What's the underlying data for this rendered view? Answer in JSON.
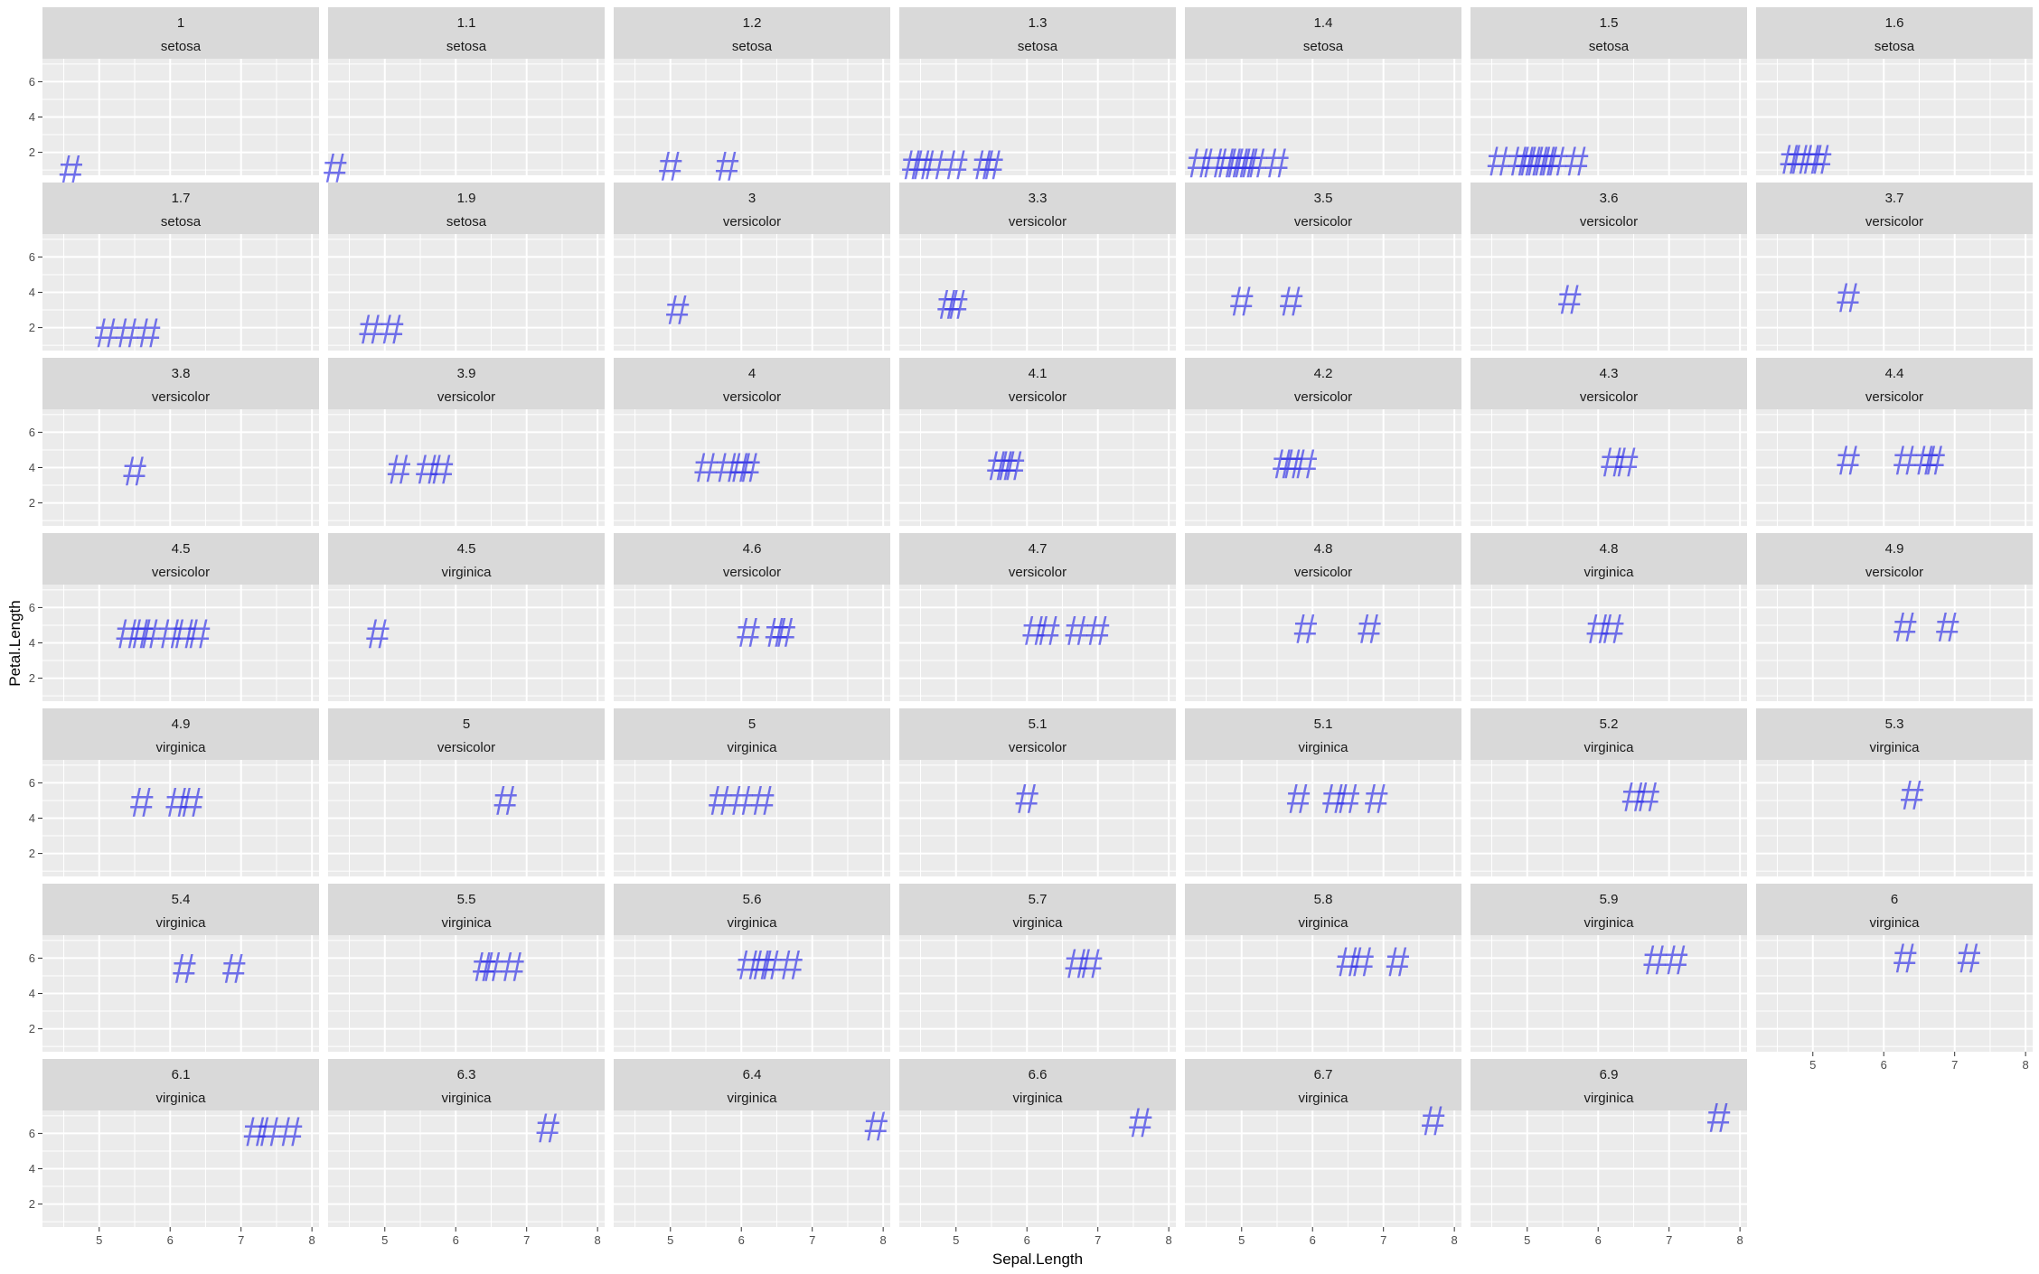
{
  "chart_data": {
    "type": "scatter",
    "title": "",
    "xlabel": "Sepal.Length",
    "ylabel": "Petal.Length",
    "facet_by": [
      "Petal.Length",
      "Species"
    ],
    "xlim": [
      4.2,
      8.1
    ],
    "ylim": [
      0.7,
      7.3
    ],
    "x_ticks": [
      5,
      6,
      7,
      8
    ],
    "y_ticks": [
      2,
      4,
      6
    ],
    "marker": "#",
    "marker_color": "#2B2BE6",
    "panel_background": "#EBEBEB",
    "strip_background": "#D9D9D9",
    "grid": true,
    "x_axis_panels": [
      41,
      42,
      43,
      44,
      45,
      46,
      47
    ],
    "panels": [
      {
        "strip": [
          "1",
          "setosa"
        ],
        "x": [
          4.6
        ],
        "y": [
          1.0
        ]
      },
      {
        "strip": [
          "1.1",
          "setosa"
        ],
        "x": [
          4.3
        ],
        "y": [
          1.1
        ]
      },
      {
        "strip": [
          "1.2",
          "setosa"
        ],
        "x": [
          5.0,
          5.8
        ],
        "y": [
          1.2,
          1.2
        ]
      },
      {
        "strip": [
          "1.3",
          "setosa"
        ],
        "x": [
          4.4,
          4.5,
          4.7,
          5.0,
          5.4,
          5.5
        ],
        "y": [
          1.3,
          1.3,
          1.3,
          1.3,
          1.3,
          1.3
        ]
      },
      {
        "strip": [
          "1.4",
          "setosa"
        ],
        "x": [
          4.4,
          4.6,
          4.8,
          4.9,
          5.0,
          5.1,
          5.2,
          5.5
        ],
        "y": [
          1.4,
          1.4,
          1.4,
          1.4,
          1.4,
          1.4,
          1.4,
          1.4
        ]
      },
      {
        "strip": [
          "1.5",
          "setosa"
        ],
        "x": [
          4.6,
          4.9,
          5.0,
          5.1,
          5.2,
          5.3,
          5.4,
          5.7
        ],
        "y": [
          1.5,
          1.5,
          1.5,
          1.5,
          1.5,
          1.5,
          1.5,
          1.5
        ]
      },
      {
        "strip": [
          "1.6",
          "setosa"
        ],
        "x": [
          4.7,
          4.8,
          5.0,
          5.1
        ],
        "y": [
          1.6,
          1.6,
          1.6,
          1.6
        ]
      },
      {
        "strip": [
          "1.7",
          "setosa"
        ],
        "x": [
          5.1,
          5.4,
          5.7
        ],
        "y": [
          1.7,
          1.7,
          1.7
        ]
      },
      {
        "strip": [
          "1.9",
          "setosa"
        ],
        "x": [
          4.8,
          5.1
        ],
        "y": [
          1.9,
          1.9
        ]
      },
      {
        "strip": [
          "3",
          "versicolor"
        ],
        "x": [
          5.1
        ],
        "y": [
          3.0
        ]
      },
      {
        "strip": [
          "3.3",
          "versicolor"
        ],
        "x": [
          4.9,
          5.0
        ],
        "y": [
          3.3,
          3.3
        ]
      },
      {
        "strip": [
          "3.5",
          "versicolor"
        ],
        "x": [
          5.0,
          5.7
        ],
        "y": [
          3.5,
          3.5
        ]
      },
      {
        "strip": [
          "3.6",
          "versicolor"
        ],
        "x": [
          5.6
        ],
        "y": [
          3.6
        ]
      },
      {
        "strip": [
          "3.7",
          "versicolor"
        ],
        "x": [
          5.5
        ],
        "y": [
          3.7
        ]
      },
      {
        "strip": [
          "3.8",
          "versicolor"
        ],
        "x": [
          5.5
        ],
        "y": [
          3.8
        ]
      },
      {
        "strip": [
          "3.9",
          "versicolor"
        ],
        "x": [
          5.2,
          5.6,
          5.8
        ],
        "y": [
          3.9,
          3.9,
          3.9
        ]
      },
      {
        "strip": [
          "4",
          "versicolor"
        ],
        "x": [
          5.5,
          5.8,
          6.0,
          6.1
        ],
        "y": [
          4.0,
          4.0,
          4.0,
          4.0
        ]
      },
      {
        "strip": [
          "4.1",
          "versicolor"
        ],
        "x": [
          5.6,
          5.7,
          5.8
        ],
        "y": [
          4.1,
          4.1,
          4.1
        ]
      },
      {
        "strip": [
          "4.2",
          "versicolor"
        ],
        "x": [
          5.6,
          5.7,
          5.9
        ],
        "y": [
          4.2,
          4.2,
          4.2
        ]
      },
      {
        "strip": [
          "4.3",
          "versicolor"
        ],
        "x": [
          6.2,
          6.4
        ],
        "y": [
          4.3,
          4.3
        ]
      },
      {
        "strip": [
          "4.4",
          "versicolor"
        ],
        "x": [
          5.5,
          6.3,
          6.6,
          6.7
        ],
        "y": [
          4.4,
          4.4,
          4.4,
          4.4
        ]
      },
      {
        "strip": [
          "4.5",
          "versicolor"
        ],
        "x": [
          5.4,
          5.6,
          5.7,
          6.0,
          6.2,
          6.4
        ],
        "y": [
          4.5,
          4.5,
          4.5,
          4.5,
          4.5,
          4.5
        ]
      },
      {
        "strip": [
          "4.5",
          "virginica"
        ],
        "x": [
          4.9
        ],
        "y": [
          4.5
        ]
      },
      {
        "strip": [
          "4.6",
          "versicolor"
        ],
        "x": [
          6.1,
          6.5,
          6.6
        ],
        "y": [
          4.6,
          4.6,
          4.6
        ]
      },
      {
        "strip": [
          "4.7",
          "versicolor"
        ],
        "x": [
          6.1,
          6.3,
          6.7,
          7.0
        ],
        "y": [
          4.7,
          4.7,
          4.7,
          4.7
        ]
      },
      {
        "strip": [
          "4.8",
          "versicolor"
        ],
        "x": [
          5.9,
          6.8
        ],
        "y": [
          4.8,
          4.8
        ]
      },
      {
        "strip": [
          "4.8",
          "virginica"
        ],
        "x": [
          6.0,
          6.2
        ],
        "y": [
          4.8,
          4.8
        ]
      },
      {
        "strip": [
          "4.9",
          "versicolor"
        ],
        "x": [
          6.3,
          6.9
        ],
        "y": [
          4.9,
          4.9
        ]
      },
      {
        "strip": [
          "4.9",
          "virginica"
        ],
        "x": [
          5.6,
          6.1,
          6.3
        ],
        "y": [
          4.9,
          4.9,
          4.9
        ]
      },
      {
        "strip": [
          "5",
          "versicolor"
        ],
        "x": [
          6.7
        ],
        "y": [
          5.0
        ]
      },
      {
        "strip": [
          "5",
          "virginica"
        ],
        "x": [
          5.7,
          6.0,
          6.3
        ],
        "y": [
          5.0,
          5.0,
          5.0
        ]
      },
      {
        "strip": [
          "5.1",
          "versicolor"
        ],
        "x": [
          6.0
        ],
        "y": [
          5.1
        ]
      },
      {
        "strip": [
          "5.1",
          "virginica"
        ],
        "x": [
          5.8,
          6.3,
          6.5,
          6.9
        ],
        "y": [
          5.1,
          5.1,
          5.1,
          5.1
        ]
      },
      {
        "strip": [
          "5.2",
          "virginica"
        ],
        "x": [
          6.5,
          6.7
        ],
        "y": [
          5.2,
          5.2
        ]
      },
      {
        "strip": [
          "5.3",
          "virginica"
        ],
        "x": [
          6.4
        ],
        "y": [
          5.3
        ]
      },
      {
        "strip": [
          "5.4",
          "virginica"
        ],
        "x": [
          6.2,
          6.9
        ],
        "y": [
          5.4,
          5.4
        ]
      },
      {
        "strip": [
          "5.5",
          "virginica"
        ],
        "x": [
          6.4,
          6.5,
          6.8
        ],
        "y": [
          5.5,
          5.5,
          5.5
        ]
      },
      {
        "strip": [
          "5.6",
          "virginica"
        ],
        "x": [
          6.1,
          6.3,
          6.4,
          6.7
        ],
        "y": [
          5.6,
          5.6,
          5.6,
          5.6
        ]
      },
      {
        "strip": [
          "5.7",
          "virginica"
        ],
        "x": [
          6.7,
          6.9
        ],
        "y": [
          5.7,
          5.7
        ]
      },
      {
        "strip": [
          "5.8",
          "virginica"
        ],
        "x": [
          6.5,
          6.7,
          7.2
        ],
        "y": [
          5.8,
          5.8,
          5.8
        ]
      },
      {
        "strip": [
          "5.9",
          "virginica"
        ],
        "x": [
          6.8,
          7.1
        ],
        "y": [
          5.9,
          5.9
        ]
      },
      {
        "strip": [
          "6",
          "virginica"
        ],
        "x": [
          6.3,
          7.2
        ],
        "y": [
          6.0,
          6.0
        ]
      },
      {
        "strip": [
          "6.1",
          "virginica"
        ],
        "x": [
          7.2,
          7.4,
          7.7
        ],
        "y": [
          6.1,
          6.1,
          6.1
        ]
      },
      {
        "strip": [
          "6.3",
          "virginica"
        ],
        "x": [
          7.3
        ],
        "y": [
          6.3
        ]
      },
      {
        "strip": [
          "6.4",
          "virginica"
        ],
        "x": [
          7.9
        ],
        "y": [
          6.4
        ]
      },
      {
        "strip": [
          "6.6",
          "virginica"
        ],
        "x": [
          7.6
        ],
        "y": [
          6.6
        ]
      },
      {
        "strip": [
          "6.7",
          "virginica"
        ],
        "x": [
          7.7
        ],
        "y": [
          6.7
        ]
      },
      {
        "strip": [
          "6.9",
          "virginica"
        ],
        "x": [
          7.7
        ],
        "y": [
          6.9
        ]
      }
    ]
  }
}
